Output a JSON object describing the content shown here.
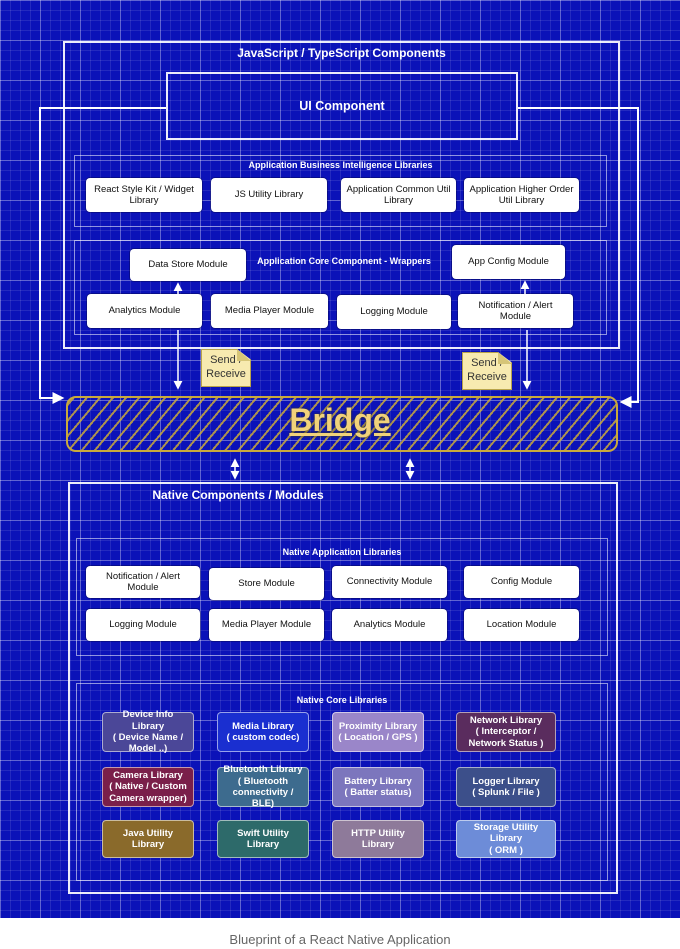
{
  "colors": {
    "background": "#0b12b8",
    "bridge": "#c9a93c",
    "note": "#f7eab0"
  },
  "top": {
    "section_title": "JavaScript / TypeScript Components",
    "ui_component": "UI Component",
    "bi_group": {
      "title": "Application Business Intelligence Libraries",
      "items": [
        "React Style Kit / Widget\nLibrary",
        "JS Utility Library",
        "Application Common Util\nLibrary",
        "Application Higher Order\nUtil Library"
      ]
    },
    "core_group": {
      "title": "Application Core Component - Wrappers",
      "data_store": "Data Store Module",
      "app_config": "App Config Module",
      "items": [
        "Analytics Module",
        "Media Player Module",
        "Logging Module",
        "Notification / Alert\nModule"
      ]
    }
  },
  "notes": [
    "Send /\nReceive",
    "Send /\nReceive"
  ],
  "bridge": "Bridge",
  "native": {
    "section_title": "Native Components / Modules",
    "app_libs": {
      "title": "Native Application Libraries",
      "items": [
        "Notification / Alert\nModule",
        "Store Module",
        "Connectivity Module",
        "Config Module",
        "Logging Module",
        "Media Player Module",
        "Analytics Module",
        "Location Module"
      ]
    },
    "core_libs": {
      "title": "Native Core Libraries",
      "items": [
        {
          "label": "Device Info Library\n( Device Name /\nModel ..)",
          "color": "#4b4798"
        },
        {
          "label": "Media Library\n( custom codec)",
          "color": "#1a2fd0"
        },
        {
          "label": "Proximity Library\n( Location / GPS )",
          "color": "#9a86c9"
        },
        {
          "label": "Network Library\n( Interceptor /\nNetwork Status )",
          "color": "#5a2c5e"
        },
        {
          "label": "Camera Library\n( Native / Custom\nCamera wrapper)",
          "color": "#7a1f4a"
        },
        {
          "label": "Bluetooth Library\n( Bluetooth\nconnectivity / BLE)",
          "color": "#3d6b8e"
        },
        {
          "label": "Battery Library\n( Batter status)",
          "color": "#7c76bd"
        },
        {
          "label": "Logger Library\n( Splunk / File )",
          "color": "#3c4f8a"
        },
        {
          "label": "Java Utility Library",
          "color": "#8a6a2b"
        },
        {
          "label": "Swift Utility Library",
          "color": "#2d6a6a"
        },
        {
          "label": "HTTP Utility Library",
          "color": "#8e7a9a"
        },
        {
          "label": "Storage Utility Library\n( ORM )",
          "color": "#6d8cd8"
        }
      ]
    }
  },
  "caption": "Blueprint of a React Native Application"
}
